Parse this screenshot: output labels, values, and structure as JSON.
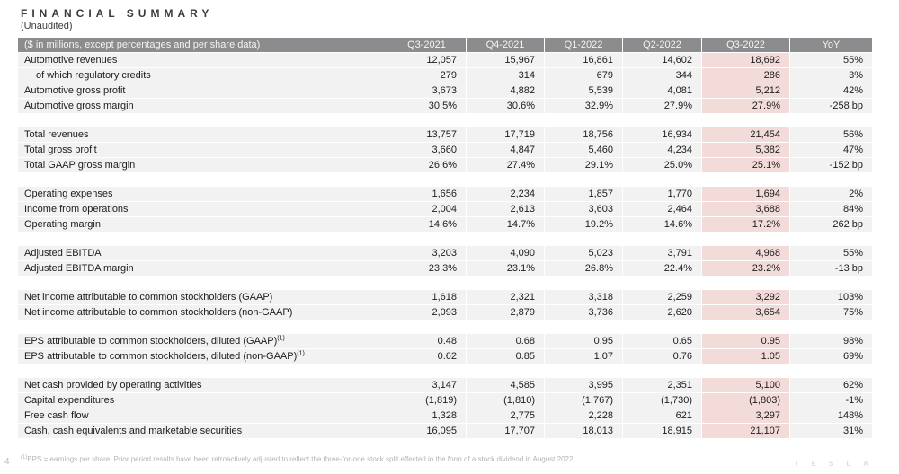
{
  "title": "FINANCIAL SUMMARY",
  "subtitle": "(Unaudited)",
  "page_number": "4",
  "logo_text": "T E S L A",
  "footnote_sup": "(1)",
  "footnote": "EPS = earnings per share. Prior period results have been retroactively adjusted to reflect the three-for-one stock split effected in the form of a stock dividend in August 2022.",
  "colors": {
    "header_bg": "#8c8c8e",
    "header_text": "#f4f4f4",
    "row_bg": "#f2f2f2",
    "highlight_bg": "#f3dbda",
    "body_text": "#1c1c1e"
  },
  "table": {
    "header_label": "($ in millions, except percentages and per share data)",
    "columns": [
      "Q3-2021",
      "Q4-2021",
      "Q1-2022",
      "Q2-2022",
      "Q3-2022",
      "YoY"
    ],
    "highlight_column": "Q3-2022",
    "blocks": [
      {
        "rows": [
          {
            "label": "Automotive revenues",
            "indent": false,
            "values": [
              "12,057",
              "15,967",
              "16,861",
              "14,602",
              "18,692",
              "55%"
            ]
          },
          {
            "label": "of which regulatory credits",
            "indent": true,
            "values": [
              "279",
              "314",
              "679",
              "344",
              "286",
              "3%"
            ]
          },
          {
            "label": "Automotive gross profit",
            "indent": false,
            "values": [
              "3,673",
              "4,882",
              "5,539",
              "4,081",
              "5,212",
              "42%"
            ]
          },
          {
            "label": "Automotive gross margin",
            "indent": false,
            "values": [
              "30.5%",
              "30.6%",
              "32.9%",
              "27.9%",
              "27.9%",
              "-258 bp"
            ]
          }
        ]
      },
      {
        "rows": [
          {
            "label": "Total revenues",
            "indent": false,
            "values": [
              "13,757",
              "17,719",
              "18,756",
              "16,934",
              "21,454",
              "56%"
            ]
          },
          {
            "label": "Total gross profit",
            "indent": false,
            "values": [
              "3,660",
              "4,847",
              "5,460",
              "4,234",
              "5,382",
              "47%"
            ]
          },
          {
            "label": "Total GAAP gross margin",
            "indent": false,
            "values": [
              "26.6%",
              "27.4%",
              "29.1%",
              "25.0%",
              "25.1%",
              "-152 bp"
            ]
          }
        ]
      },
      {
        "rows": [
          {
            "label": "Operating expenses",
            "indent": false,
            "values": [
              "1,656",
              "2,234",
              "1,857",
              "1,770",
              "1,694",
              "2%"
            ]
          },
          {
            "label": "Income from operations",
            "indent": false,
            "values": [
              "2,004",
              "2,613",
              "3,603",
              "2,464",
              "3,688",
              "84%"
            ]
          },
          {
            "label": "Operating margin",
            "indent": false,
            "values": [
              "14.6%",
              "14.7%",
              "19.2%",
              "14.6%",
              "17.2%",
              "262 bp"
            ]
          }
        ]
      },
      {
        "rows": [
          {
            "label": "Adjusted EBITDA",
            "indent": false,
            "values": [
              "3,203",
              "4,090",
              "5,023",
              "3,791",
              "4,968",
              "55%"
            ]
          },
          {
            "label": "Adjusted EBITDA margin",
            "indent": false,
            "values": [
              "23.3%",
              "23.1%",
              "26.8%",
              "22.4%",
              "23.2%",
              "-13 bp"
            ]
          }
        ]
      },
      {
        "rows": [
          {
            "label": "Net income attributable to common stockholders (GAAP)",
            "indent": false,
            "values": [
              "1,618",
              "2,321",
              "3,318",
              "2,259",
              "3,292",
              "103%"
            ]
          },
          {
            "label": "Net income attributable to common stockholders (non-GAAP)",
            "indent": false,
            "values": [
              "2,093",
              "2,879",
              "3,736",
              "2,620",
              "3,654",
              "75%"
            ]
          }
        ]
      },
      {
        "rows": [
          {
            "label": "EPS attributable to common stockholders, diluted (GAAP)",
            "sup": "(1)",
            "indent": false,
            "values": [
              "0.48",
              "0.68",
              "0.95",
              "0.65",
              "0.95",
              "98%"
            ]
          },
          {
            "label": "EPS attributable to common stockholders, diluted (non-GAAP)",
            "sup": "(1)",
            "indent": false,
            "values": [
              "0.62",
              "0.85",
              "1.07",
              "0.76",
              "1.05",
              "69%"
            ]
          }
        ]
      },
      {
        "rows": [
          {
            "label": "Net cash provided by operating activities",
            "indent": false,
            "values": [
              "3,147",
              "4,585",
              "3,995",
              "2,351",
              "5,100",
              "62%"
            ]
          },
          {
            "label": "Capital expenditures",
            "indent": false,
            "values": [
              "(1,819)",
              "(1,810)",
              "(1,767)",
              "(1,730)",
              "(1,803)",
              "-1%"
            ]
          },
          {
            "label": "Free cash flow",
            "indent": false,
            "values": [
              "1,328",
              "2,775",
              "2,228",
              "621",
              "3,297",
              "148%"
            ]
          },
          {
            "label": "Cash, cash equivalents and marketable securities",
            "indent": false,
            "values": [
              "16,095",
              "17,707",
              "18,013",
              "18,915",
              "21,107",
              "31%"
            ]
          }
        ]
      }
    ]
  }
}
